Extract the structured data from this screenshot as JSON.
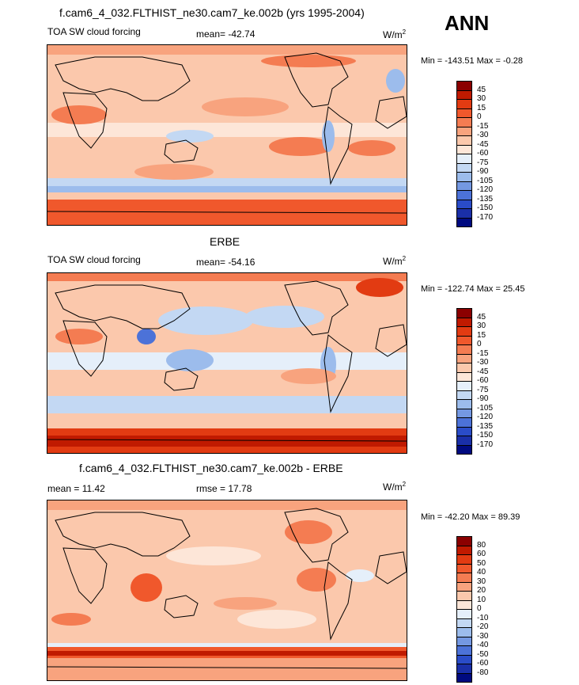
{
  "season": "ANN",
  "panels": [
    {
      "title": "f.cam6_4_032.FLTHIST_ne30.cam7_ke.002b (yrs 1995-2004)",
      "left_label": "TOA SW cloud forcing",
      "mid_label": "mean= -42.74",
      "units_base": "W/m",
      "units_exp": "2",
      "minmax": "Min = -143.51 Max =  -0.28",
      "levels": [
        "45",
        "30",
        "15",
        "0",
        "-15",
        "-30",
        "-45",
        "-60",
        "-75",
        "-90",
        "-105",
        "-120",
        "-135",
        "-150",
        "-170"
      ],
      "colors": [
        "#8b0000",
        "#c01a00",
        "#e23b12",
        "#f0582c",
        "#f47c52",
        "#f8a37e",
        "#fbc8ac",
        "#fde6d8",
        "#e5effa",
        "#c3d8f3",
        "#9cbcec",
        "#7498e2",
        "#4c72d8",
        "#2a4cc8",
        "#1a2fa8",
        "#000a80"
      ]
    },
    {
      "title": "ERBE",
      "left_label": "TOA SW cloud forcing",
      "mid_label": "mean= -54.16",
      "units_base": "W/m",
      "units_exp": "2",
      "minmax": "Min = -122.74 Max =  25.45",
      "levels": [
        "45",
        "30",
        "15",
        "0",
        "-15",
        "-30",
        "-45",
        "-60",
        "-75",
        "-90",
        "-105",
        "-120",
        "-135",
        "-150",
        "-170"
      ],
      "colors": [
        "#8b0000",
        "#c01a00",
        "#e23b12",
        "#f0582c",
        "#f47c52",
        "#f8a37e",
        "#fbc8ac",
        "#fde6d8",
        "#e5effa",
        "#c3d8f3",
        "#9cbcec",
        "#7498e2",
        "#4c72d8",
        "#2a4cc8",
        "#1a2fa8",
        "#000a80"
      ]
    },
    {
      "title": "f.cam6_4_032.FLTHIST_ne30.cam7_ke.002b - ERBE",
      "left_label": "mean =  11.42",
      "mid_label": "rmse =  17.78",
      "units_base": "W/m",
      "units_exp": "2",
      "minmax": "Min = -42.20 Max =  89.39",
      "levels": [
        "80",
        "60",
        "50",
        "40",
        "30",
        "20",
        "10",
        "0",
        "-10",
        "-20",
        "-30",
        "-40",
        "-50",
        "-60",
        "-80"
      ],
      "colors": [
        "#8b0000",
        "#c01a00",
        "#e23b12",
        "#f0582c",
        "#f47c52",
        "#f8a37e",
        "#fbc8ac",
        "#fde6d8",
        "#e5effa",
        "#c3d8f3",
        "#9cbcec",
        "#7498e2",
        "#4c72d8",
        "#2a4cc8",
        "#1a2fa8",
        "#000a80"
      ]
    }
  ]
}
